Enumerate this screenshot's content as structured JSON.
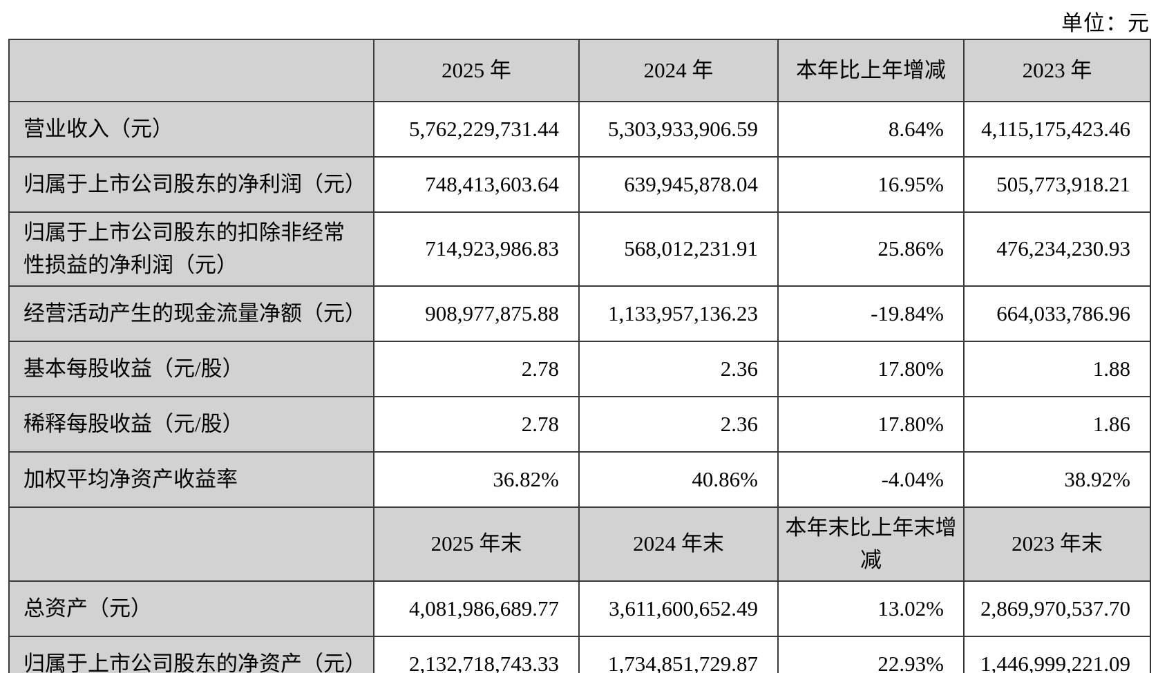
{
  "unit_label": "单位：元",
  "colors": {
    "header_bg": "#d2d2d2",
    "border_color": "#3a3a3a",
    "text_color": "#000000",
    "page_bg": "#ffffff"
  },
  "table": {
    "headers_annual": [
      "2025 年",
      "2024 年",
      "本年比上年增减",
      "2023 年"
    ],
    "headers_eoy": [
      "2025 年末",
      "2024 年末",
      "本年末比上年末增减",
      "2023 年末"
    ],
    "rows_annual": [
      {
        "label": "营业收入（元）",
        "y2025": "5,762,229,731.44",
        "y2024": "5,303,933,906.59",
        "change": "8.64%",
        "y2023": "4,115,175,423.46"
      },
      {
        "label": "归属于上市公司股东的净利润（元）",
        "y2025": "748,413,603.64",
        "y2024": "639,945,878.04",
        "change": "16.95%",
        "y2023": "505,773,918.21"
      },
      {
        "label": "归属于上市公司股东的扣除非经常性损益的净利润（元）",
        "y2025": "714,923,986.83",
        "y2024": "568,012,231.91",
        "change": "25.86%",
        "y2023": "476,234,230.93"
      },
      {
        "label": "经营活动产生的现金流量净额（元）",
        "y2025": "908,977,875.88",
        "y2024": "1,133,957,136.23",
        "change": "-19.84%",
        "y2023": "664,033,786.96"
      },
      {
        "label": "基本每股收益（元/股）",
        "y2025": "2.78",
        "y2024": "2.36",
        "change": "17.80%",
        "y2023": "1.88"
      },
      {
        "label": "稀释每股收益（元/股）",
        "y2025": "2.78",
        "y2024": "2.36",
        "change": "17.80%",
        "y2023": "1.86"
      },
      {
        "label": "加权平均净资产收益率",
        "y2025": "36.82%",
        "y2024": "40.86%",
        "change": "-4.04%",
        "y2023": "38.92%"
      }
    ],
    "rows_eoy": [
      {
        "label": "总资产（元）",
        "y2025": "4,081,986,689.77",
        "y2024": "3,611,600,652.49",
        "change": "13.02%",
        "y2023": "2,869,970,537.70"
      },
      {
        "label": "归属于上市公司股东的净资产（元）",
        "y2025": "2,132,718,743.33",
        "y2024": "1,734,851,729.87",
        "change": "22.93%",
        "y2023": "1,446,999,221.09"
      }
    ]
  }
}
